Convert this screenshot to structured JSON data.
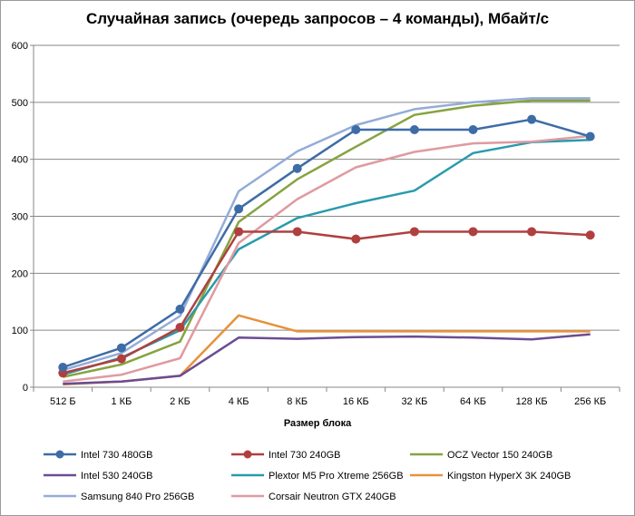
{
  "chart_data": {
    "type": "line",
    "title": "Случайная запись (очередь запросов – 4 команды), Мбайт/с",
    "xlabel": "Размер блока",
    "ylabel": "",
    "categories": [
      "512 Б",
      "1 КБ",
      "2 КБ",
      "4 КБ",
      "8 КБ",
      "16 КБ",
      "32 КБ",
      "64 КБ",
      "128 КБ",
      "256 КБ"
    ],
    "ylim": [
      0,
      600
    ],
    "yticks": [
      0,
      100,
      200,
      300,
      400,
      500,
      600
    ],
    "grid": true,
    "legend_position": "bottom",
    "series": [
      {
        "name": "Intel 730 480GB",
        "color": "#3e6ca6",
        "markers": true,
        "values": [
          35,
          69,
          137,
          313,
          384,
          452,
          452,
          452,
          470,
          440
        ]
      },
      {
        "name": "Intel 730 240GB",
        "color": "#b04040",
        "markers": true,
        "values": [
          25,
          50,
          105,
          273,
          273,
          260,
          273,
          273,
          273,
          267
        ]
      },
      {
        "name": "OCZ Vector 150 240GB",
        "color": "#86a340",
        "markers": false,
        "values": [
          18,
          40,
          80,
          290,
          365,
          422,
          478,
          494,
          503,
          503
        ]
      },
      {
        "name": "Intel 530 240GB",
        "color": "#6b4c92",
        "markers": false,
        "values": [
          6,
          10,
          20,
          87,
          85,
          88,
          89,
          87,
          84,
          93
        ]
      },
      {
        "name": "Plextor M5 Pro Xtreme 256GB",
        "color": "#2a9aad",
        "markers": false,
        "values": [
          22,
          52,
          100,
          242,
          297,
          323,
          345,
          411,
          430,
          434
        ]
      },
      {
        "name": "Kingston HyperX 3K 240GB",
        "color": "#e8913a",
        "markers": false,
        "values": [
          5,
          10,
          20,
          126,
          98,
          98,
          98,
          98,
          98,
          98
        ]
      },
      {
        "name": "Samsung 840 Pro 256GB",
        "color": "#94acd8",
        "markers": false,
        "values": [
          30,
          60,
          125,
          344,
          414,
          460,
          488,
          500,
          507,
          507
        ]
      },
      {
        "name": "Corsair Neutron GTX 240GB",
        "color": "#df9aa0",
        "markers": false,
        "values": [
          10,
          22,
          51,
          253,
          330,
          386,
          413,
          428,
          431,
          441
        ]
      }
    ]
  }
}
